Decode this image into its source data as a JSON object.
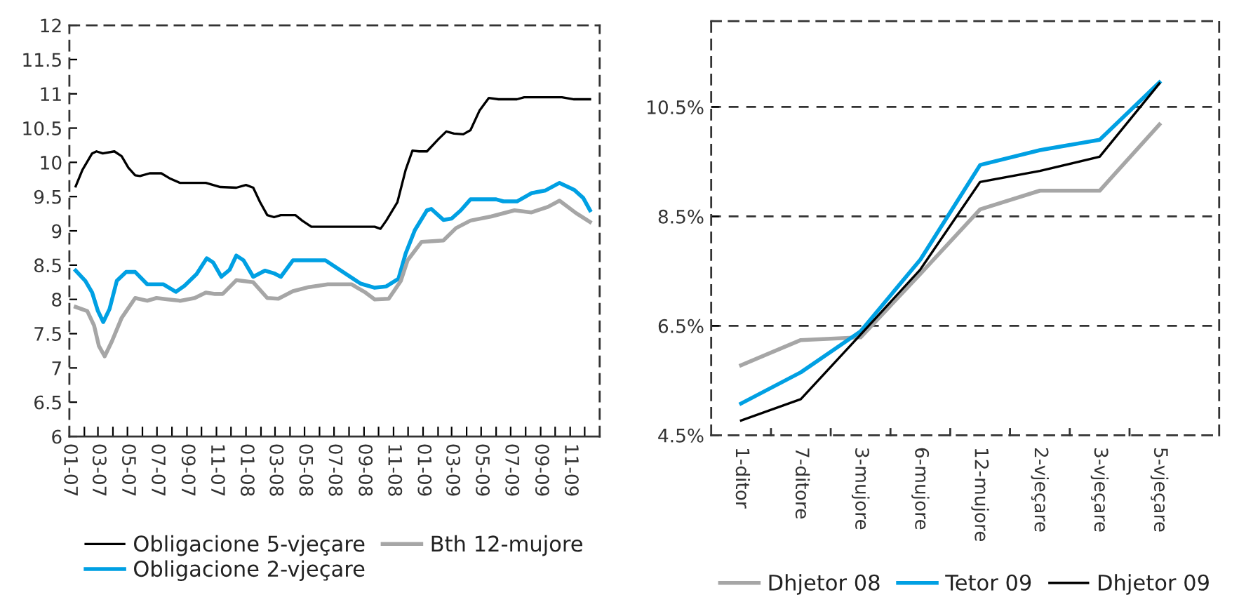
{
  "chart_data": [
    {
      "type": "line",
      "xlim": [
        "2007-01-01",
        "2010-01-01"
      ],
      "ylim": [
        6,
        12
      ],
      "xticks": [
        {
          "value": "2007-01-01",
          "label": "01-07"
        },
        {
          "value": "2007-02-01",
          "label": null
        },
        {
          "value": "2007-03-01",
          "label": "03-07"
        },
        {
          "value": "2007-04-01",
          "label": null
        },
        {
          "value": "2007-05-01",
          "label": "05-07"
        },
        {
          "value": "2007-06-01",
          "label": null
        },
        {
          "value": "2007-07-01",
          "label": "07-07"
        },
        {
          "value": "2007-08-01",
          "label": null
        },
        {
          "value": "2007-09-01",
          "label": "09-07"
        },
        {
          "value": "2007-10-01",
          "label": null
        },
        {
          "value": "2007-11-01",
          "label": "11-07"
        },
        {
          "value": "2007-12-01",
          "label": null
        },
        {
          "value": "2008-01-01",
          "label": "01-08"
        },
        {
          "value": "2008-02-01",
          "label": null
        },
        {
          "value": "2008-03-01",
          "label": "03-08"
        },
        {
          "value": "2008-04-01",
          "label": null
        },
        {
          "value": "2008-05-01",
          "label": "05-08"
        },
        {
          "value": "2008-06-01",
          "label": null
        },
        {
          "value": "2008-07-01",
          "label": "07-08"
        },
        {
          "value": "2008-08-01",
          "label": null
        },
        {
          "value": "2008-09-01",
          "label": "09-08"
        },
        {
          "value": "2008-10-01",
          "label": null
        },
        {
          "value": "2008-11-01",
          "label": "11-08"
        },
        {
          "value": "2008-12-01",
          "label": null
        },
        {
          "value": "2009-01-01",
          "label": "01-09"
        },
        {
          "value": "2009-02-01",
          "label": null
        },
        {
          "value": "2009-03-01",
          "label": "03-09"
        },
        {
          "value": "2009-04-01",
          "label": null
        },
        {
          "value": "2009-05-01",
          "label": "05-09"
        },
        {
          "value": "2009-06-01",
          "label": null
        },
        {
          "value": "2009-07-01",
          "label": "07-09"
        },
        {
          "value": "2009-08-01",
          "label": null
        },
        {
          "value": "2009-09-01",
          "label": "09-09"
        },
        {
          "value": "2009-10-01",
          "label": null
        },
        {
          "value": "2009-11-01",
          "label": "11-09"
        },
        {
          "value": "2009-12-01",
          "label": null
        }
      ],
      "yticks": [
        6,
        6.5,
        7,
        7.5,
        8,
        8.5,
        9,
        9.5,
        10,
        10.5,
        11,
        11.5,
        12
      ],
      "grid": false,
      "legend": "bottom",
      "series": [
        {
          "name": "Obligacione 5-vjeçare",
          "color": "#000000",
          "x": [
            "2007-01-14",
            "2007-01-28",
            "2007-02-17",
            "2007-02-26",
            "2007-03-11",
            "2007-04-04",
            "2007-04-19",
            "2007-05-03",
            "2007-05-17",
            "2007-05-27",
            "2007-06-16",
            "2007-07-10",
            "2007-07-29",
            "2007-08-18",
            "2007-10-10",
            "2007-11-09",
            "2007-12-12",
            "2008-01-01",
            "2008-01-16",
            "2008-01-30",
            "2008-02-14",
            "2008-02-28",
            "2008-03-13",
            "2008-04-12",
            "2008-04-26",
            "2008-05-15",
            "2008-09-23",
            "2008-10-05",
            "2008-10-17",
            "2008-11-09",
            "2008-11-26",
            "2008-12-10",
            "2008-12-24",
            "2009-01-09",
            "2009-02-02",
            "2009-02-18",
            "2009-03-06",
            "2009-03-25",
            "2009-04-09",
            "2009-04-28",
            "2009-05-17",
            "2009-06-06",
            "2009-07-14",
            "2009-07-29",
            "2009-10-15",
            "2009-11-09",
            "2009-12-12"
          ],
          "values": [
            9.65,
            9.89,
            10.13,
            10.16,
            10.13,
            10.16,
            10.09,
            9.92,
            9.81,
            9.8,
            9.84,
            9.84,
            9.76,
            9.7,
            9.7,
            9.64,
            9.63,
            9.67,
            9.63,
            9.42,
            9.23,
            9.2,
            9.23,
            9.23,
            9.15,
            9.06,
            9.06,
            9.03,
            9.15,
            9.42,
            9.89,
            10.17,
            10.16,
            10.16,
            10.34,
            10.45,
            10.42,
            10.41,
            10.47,
            10.76,
            10.94,
            10.92,
            10.92,
            10.95,
            10.95,
            10.92,
            10.92
          ]
        },
        {
          "name": "Obligacione 2-vjeçare",
          "color": "#00a0e3",
          "x": [
            "2007-01-14",
            "2007-02-03",
            "2007-02-17",
            "2007-03-01",
            "2007-03-12",
            "2007-03-25",
            "2007-04-09",
            "2007-04-28",
            "2007-05-17",
            "2007-06-11",
            "2007-07-14",
            "2007-08-09",
            "2007-08-27",
            "2007-09-21",
            "2007-10-12",
            "2007-10-25",
            "2007-11-11",
            "2007-11-28",
            "2007-12-12",
            "2007-12-27",
            "2008-01-16",
            "2008-02-09",
            "2008-02-28",
            "2008-03-13",
            "2008-04-07",
            "2008-06-13",
            "2008-08-25",
            "2008-09-23",
            "2008-10-17",
            "2008-11-11",
            "2008-11-26",
            "2008-12-15",
            "2009-01-09",
            "2009-01-18",
            "2009-02-12",
            "2009-03-01",
            "2009-03-20",
            "2009-04-09",
            "2009-06-01",
            "2009-06-16",
            "2009-07-14",
            "2009-08-13",
            "2009-09-11",
            "2009-10-10",
            "2009-11-09",
            "2009-11-28",
            "2009-12-12"
          ],
          "values": [
            8.42,
            8.27,
            8.1,
            7.83,
            7.67,
            7.86,
            8.27,
            8.4,
            8.4,
            8.22,
            8.22,
            8.11,
            8.2,
            8.37,
            8.6,
            8.54,
            8.33,
            8.43,
            8.64,
            8.57,
            8.33,
            8.42,
            8.38,
            8.33,
            8.57,
            8.57,
            8.23,
            8.17,
            8.19,
            8.3,
            8.67,
            9.01,
            9.3,
            9.32,
            9.16,
            9.18,
            9.3,
            9.46,
            9.46,
            9.43,
            9.43,
            9.55,
            9.59,
            9.7,
            9.6,
            9.48,
            9.3
          ]
        },
        {
          "name": "Bth 12-mujore",
          "color": "#a6a6a6",
          "x": [
            "2007-01-14",
            "2007-02-07",
            "2007-02-21",
            "2007-03-03",
            "2007-03-15",
            "2007-03-30",
            "2007-04-19",
            "2007-05-17",
            "2007-06-11",
            "2007-06-30",
            "2007-07-24",
            "2007-08-18",
            "2007-09-17",
            "2007-10-10",
            "2007-10-29",
            "2007-11-14",
            "2007-12-12",
            "2008-01-16",
            "2008-02-14",
            "2008-03-08",
            "2008-04-07",
            "2008-05-10",
            "2008-06-18",
            "2008-08-06",
            "2008-09-04",
            "2008-09-23",
            "2008-10-22",
            "2008-11-16",
            "2008-11-30",
            "2008-12-29",
            "2009-02-12",
            "2009-03-10",
            "2009-04-09",
            "2009-05-22",
            "2009-07-09",
            "2009-08-13",
            "2009-09-16",
            "2009-10-10",
            "2009-11-13",
            "2009-12-12"
          ],
          "values": [
            7.89,
            7.83,
            7.62,
            7.32,
            7.17,
            7.39,
            7.73,
            8.02,
            7.98,
            8.02,
            8.0,
            7.98,
            8.02,
            8.1,
            8.08,
            8.08,
            8.28,
            8.25,
            8.02,
            8.01,
            8.12,
            8.18,
            8.22,
            8.22,
            8.1,
            8.0,
            8.01,
            8.27,
            8.57,
            8.84,
            8.86,
            9.04,
            9.15,
            9.21,
            9.3,
            9.27,
            9.35,
            9.44,
            9.26,
            9.13
          ]
        }
      ]
    },
    {
      "type": "line",
      "categories": [
        "1-ditor",
        "7-ditore",
        "3-mujore",
        "6-mujore",
        "12-mujore",
        "2-vjeçare",
        "3-vjeçare",
        "5-vjeçare"
      ],
      "ylim": [
        4.5,
        12.07
      ],
      "yticks": [
        {
          "value": 4.5,
          "label": "4.5%"
        },
        {
          "value": 6.5,
          "label": "6.5%"
        },
        {
          "value": 8.5,
          "label": "8.5%"
        },
        {
          "value": 10.5,
          "label": "10.5%"
        }
      ],
      "grid": "y",
      "legend": "bottom",
      "series": [
        {
          "name": "Dhjetor 08",
          "color": "#a6a6a6",
          "values": [
            5.78,
            6.24,
            6.29,
            7.45,
            8.63,
            8.97,
            8.97,
            10.18
          ]
        },
        {
          "name": "Tetor 09",
          "color": "#00a0e3",
          "values": [
            5.08,
            5.65,
            6.4,
            7.71,
            9.44,
            9.71,
            9.9,
            10.95
          ]
        },
        {
          "name": "Dhjetor 09",
          "color": "#000000",
          "values": [
            4.77,
            5.16,
            6.34,
            7.53,
            9.13,
            9.33,
            9.59,
            10.93
          ]
        }
      ]
    }
  ]
}
